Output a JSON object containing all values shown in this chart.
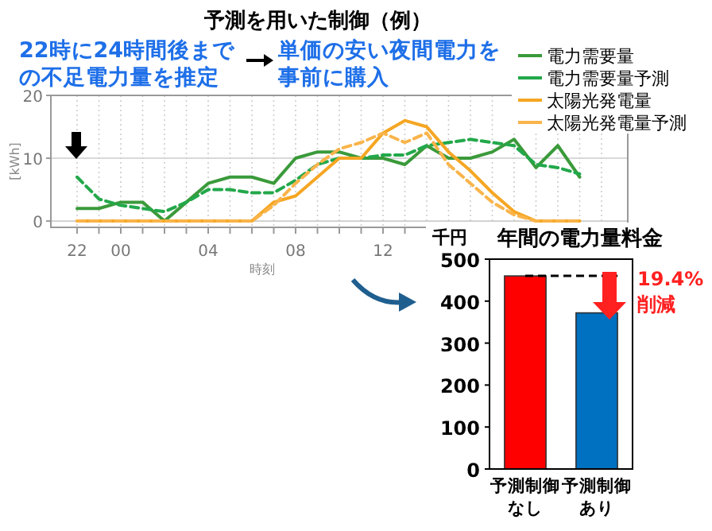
{
  "chart_data": [
    {
      "type": "line",
      "title": "予測を用いた制御（例）",
      "xlabel": "時刻",
      "ylabel": "[kWh]",
      "categories": [
        "22",
        null,
        "00",
        null,
        null,
        null,
        "04",
        null,
        null,
        null,
        "08",
        null,
        null,
        null,
        "12",
        null,
        null,
        null,
        null,
        null,
        null,
        null,
        null,
        null,
        null
      ],
      "series": [
        {
          "name": "電力需要量",
          "color": "#3a9a3a",
          "line_style": "solid",
          "values": [
            2,
            2,
            3,
            3,
            0,
            3,
            6,
            7,
            7,
            6,
            10,
            11,
            11,
            10,
            10,
            9,
            12,
            10,
            10,
            11,
            13,
            8.5,
            12,
            7,
            null
          ]
        },
        {
          "name": "電力需要量予測",
          "color": "#22a84a",
          "line_style": "dashed",
          "values": [
            7,
            3.5,
            2.5,
            2,
            1.5,
            3,
            5,
            5,
            4.5,
            4.5,
            6.5,
            9,
            10,
            10,
            10.5,
            10.5,
            12,
            12.5,
            13,
            12.5,
            12,
            9,
            8.5,
            7.5,
            null
          ]
        },
        {
          "name": "太陽光発電量",
          "color": "#f5a623",
          "line_style": "solid",
          "values": [
            0,
            0,
            0,
            0,
            0,
            0,
            0,
            0,
            0,
            3,
            4,
            7,
            10,
            10,
            14,
            16,
            15,
            11,
            8,
            4.5,
            1.5,
            0,
            0,
            0,
            null
          ]
        },
        {
          "name": "太陽光発電量予測",
          "color": "#f9b44a",
          "line_style": "dashed",
          "values": [
            0,
            0,
            0,
            0,
            0,
            0,
            0,
            0,
            0,
            2.5,
            6,
            9,
            11.5,
            12.5,
            14,
            12.5,
            14,
            9,
            6,
            3,
            1,
            0,
            0,
            0,
            null
          ]
        }
      ],
      "ylim": [
        -1,
        20
      ],
      "yticks": [
        0,
        10,
        20
      ],
      "grid": true,
      "legend": "top right",
      "annotations": [
        "22時に24時間後までの不足電力量を推定",
        "単価の安い夜間電力を事前に購入"
      ]
    },
    {
      "type": "bar",
      "title": "年間の電力量料金",
      "ylabel": "千円",
      "categories": [
        "予測制御なし",
        "予測制御あり"
      ],
      "values": [
        460,
        372
      ],
      "colors": [
        "#ff0000",
        "#0070c0"
      ],
      "ylim": [
        0,
        500
      ],
      "yticks": [
        0,
        100,
        200,
        300,
        400,
        500
      ],
      "ref_lines": [
        {
          "axis": "y",
          "value": 460,
          "color": "#000000",
          "line_style": "dashed"
        }
      ],
      "annotations": [
        {
          "text": "19.4%削減",
          "x": "予測制御あり",
          "y": 460
        }
      ]
    }
  ]
}
